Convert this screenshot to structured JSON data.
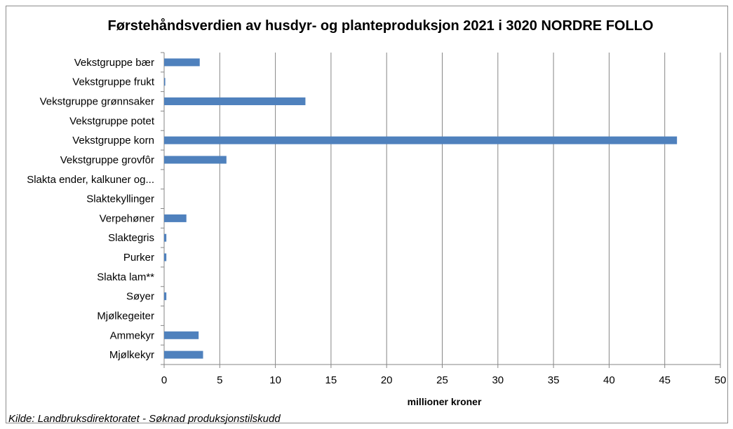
{
  "chart_data": {
    "type": "bar",
    "orientation": "horizontal",
    "title": "Førstehåndsverdien av husdyr- og planteproduksjon 2021 i 3020 NORDRE FOLLO",
    "xlabel": "millioner kroner",
    "ylabel": "",
    "xlim": [
      0,
      50
    ],
    "xticks": [
      0,
      5,
      10,
      15,
      20,
      25,
      30,
      35,
      40,
      45,
      50
    ],
    "grid": "vertical",
    "legend": "none",
    "bar_color": "#4f81bd",
    "categories": [
      "Vekstgruppe bær",
      "Vekstgruppe frukt",
      "Vekstgruppe grønnsaker",
      "Vekstgruppe potet",
      "Vekstgruppe korn",
      "Vekstgruppe grovfôr",
      "Slakta ender, kalkuner og...",
      "Slaktekyllinger",
      "Verpehøner",
      "Slaktegris",
      "Purker",
      "Slakta lam**",
      "Søyer",
      "Mjølkegeiter",
      "Ammekyr",
      "Mjølkekyr"
    ],
    "values": [
      3.2,
      0.1,
      12.7,
      0,
      46.1,
      5.6,
      0,
      0,
      2.0,
      0.2,
      0.2,
      0,
      0.2,
      0,
      3.1,
      3.5
    ]
  },
  "source": "Kilde: Landbruksdirektoratet - Søknad produksjonstilskudd"
}
